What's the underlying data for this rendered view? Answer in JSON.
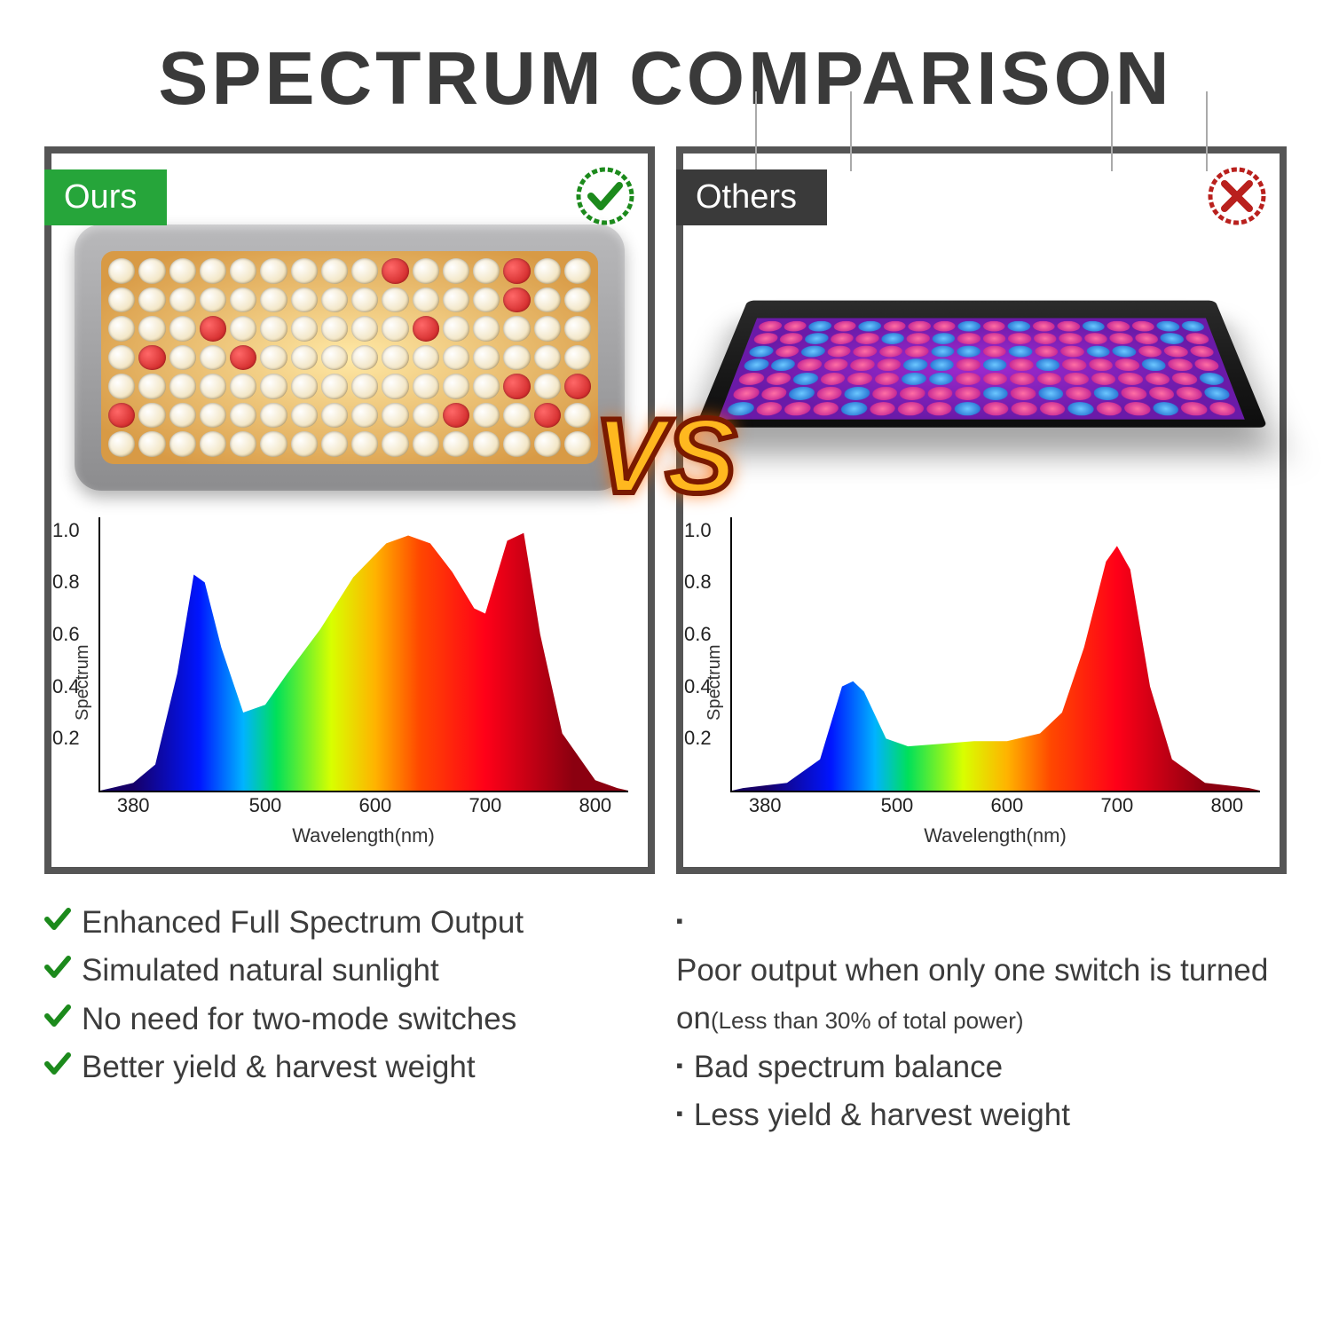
{
  "title": "SPECTRUM COMPARISON",
  "panels": {
    "ours": {
      "tag_label": "Ours",
      "tag_color": "#26a53a",
      "badge": "check",
      "badge_color": "#1c8a1c",
      "led_grid": {
        "cols": 16,
        "rows": 7,
        "red_ratio": 0.12
      }
    },
    "others": {
      "tag_label": "Others",
      "tag_color": "#3a3a3a",
      "badge": "cross",
      "badge_color": "#b9201d"
    }
  },
  "vs_text": "VS",
  "chart": {
    "ylabel": "Spectrum",
    "xlabel": "Wavelength(nm)",
    "xlim": [
      350,
      830
    ],
    "ylim": [
      0,
      1.05
    ],
    "yticks": [
      0.2,
      0.4,
      0.6,
      0.8,
      1.0
    ],
    "xticks": [
      380,
      500,
      600,
      700,
      800
    ],
    "axis_color": "#000000",
    "tick_fontsize": 22,
    "label_fontsize": 22,
    "gradient_stops": [
      {
        "wl": 380,
        "color": "#160067"
      },
      {
        "wl": 440,
        "color": "#0015ff"
      },
      {
        "wl": 480,
        "color": "#00b3ff"
      },
      {
        "wl": 510,
        "color": "#00e05a"
      },
      {
        "wl": 560,
        "color": "#d8ff00"
      },
      {
        "wl": 600,
        "color": "#ffb300"
      },
      {
        "wl": 640,
        "color": "#ff4800"
      },
      {
        "wl": 700,
        "color": "#ff0018"
      },
      {
        "wl": 780,
        "color": "#8b0010"
      }
    ],
    "ours_curve": [
      [
        360,
        0.01
      ],
      [
        380,
        0.03
      ],
      [
        400,
        0.1
      ],
      [
        420,
        0.45
      ],
      [
        435,
        0.83
      ],
      [
        445,
        0.8
      ],
      [
        460,
        0.55
      ],
      [
        480,
        0.3
      ],
      [
        500,
        0.33
      ],
      [
        520,
        0.45
      ],
      [
        550,
        0.62
      ],
      [
        580,
        0.82
      ],
      [
        610,
        0.95
      ],
      [
        630,
        0.98
      ],
      [
        650,
        0.95
      ],
      [
        670,
        0.84
      ],
      [
        690,
        0.7
      ],
      [
        700,
        0.68
      ],
      [
        720,
        0.96
      ],
      [
        735,
        0.99
      ],
      [
        750,
        0.6
      ],
      [
        770,
        0.22
      ],
      [
        800,
        0.04
      ],
      [
        820,
        0.01
      ]
    ],
    "others_curve": [
      [
        360,
        0.01
      ],
      [
        400,
        0.03
      ],
      [
        430,
        0.12
      ],
      [
        450,
        0.4
      ],
      [
        460,
        0.42
      ],
      [
        470,
        0.38
      ],
      [
        490,
        0.2
      ],
      [
        510,
        0.17
      ],
      [
        540,
        0.18
      ],
      [
        570,
        0.19
      ],
      [
        600,
        0.19
      ],
      [
        630,
        0.22
      ],
      [
        650,
        0.3
      ],
      [
        670,
        0.55
      ],
      [
        690,
        0.88
      ],
      [
        700,
        0.94
      ],
      [
        712,
        0.85
      ],
      [
        730,
        0.4
      ],
      [
        750,
        0.12
      ],
      [
        780,
        0.03
      ],
      [
        820,
        0.01
      ]
    ]
  },
  "bullets": {
    "ours": [
      "Enhanced Full Spectrum Output",
      "Simulated natural sunlight",
      "No need for two-mode switches",
      "Better yield & harvest weight"
    ],
    "others": [
      {
        "main": "Poor output when only one switch is turned on",
        "sub": "(Less than 30% of total power)"
      },
      {
        "main": "Bad spectrum balance"
      },
      {
        "main": "Less yield & harvest weight"
      }
    ]
  },
  "colors": {
    "title": "#3a3a3a",
    "border": "#555555",
    "check": "#1c8a1c",
    "cross": "#b9201d",
    "text": "#3c3c3c"
  }
}
